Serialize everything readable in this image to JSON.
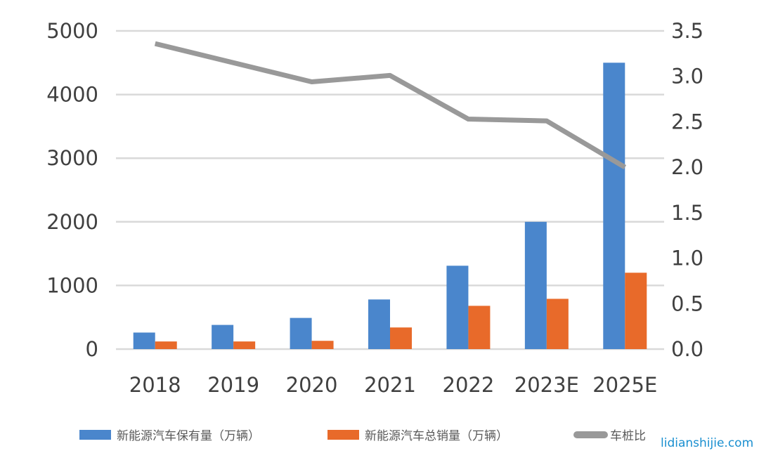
{
  "chart_data": {
    "type": "bar+line",
    "categories": [
      "2018",
      "2019",
      "2020",
      "2021",
      "2022",
      "2023E",
      "2025E"
    ],
    "series": [
      {
        "name": "新能源汽车保有量（万辆）",
        "type": "bar",
        "axis": "left",
        "color": "#4a86cc",
        "values": [
          260,
          380,
          490,
          780,
          1310,
          2000,
          4500
        ]
      },
      {
        "name": "新能源汽车总销量（万辆）",
        "type": "bar",
        "axis": "left",
        "color": "#e86a2a",
        "values": [
          120,
          120,
          130,
          340,
          680,
          790,
          1200
        ]
      },
      {
        "name": "车桩比",
        "type": "line",
        "axis": "right",
        "color": "#999999",
        "values": [
          3.36,
          3.15,
          2.94,
          3.01,
          2.53,
          2.51,
          2.0
        ]
      }
    ],
    "y_left": {
      "range": [
        0,
        5000
      ],
      "ticks": [
        "0",
        "1000",
        "2000",
        "3000",
        "4000",
        "5000"
      ]
    },
    "y_right": {
      "range": [
        0,
        3.5
      ],
      "ticks": [
        "0.0",
        "0.5",
        "1.0",
        "1.5",
        "2.0",
        "2.5",
        "3.0",
        "3.5"
      ]
    },
    "grid": true,
    "legend": "bottom"
  },
  "watermark": "lidianshijie.com"
}
